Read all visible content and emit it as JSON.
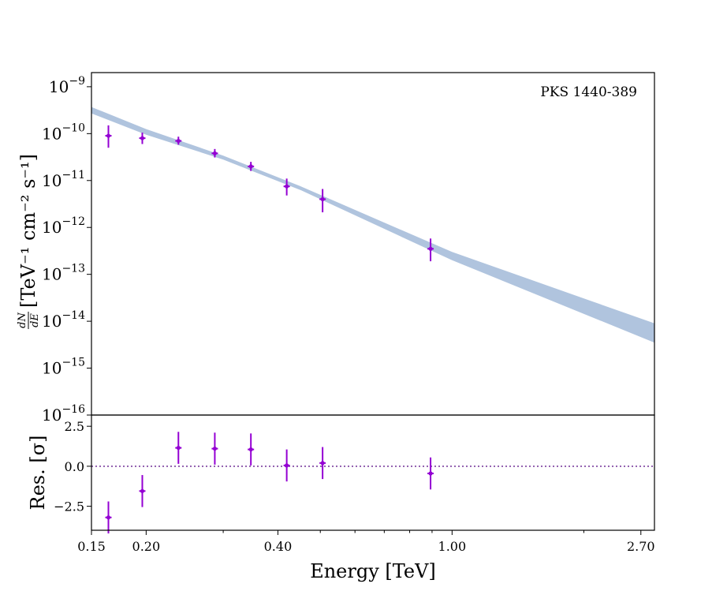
{
  "chart_data": {
    "type": "scatter",
    "source_label": "PKS 1440-389",
    "xlabel": "Energy [TeV]",
    "x_scale": "log",
    "xlim": [
      0.15,
      2.9
    ],
    "x_ticks": [
      {
        "value": 0.15,
        "label": "0.15"
      },
      {
        "value": 0.2,
        "label": "0.20"
      },
      {
        "value": 0.4,
        "label": "0.40"
      },
      {
        "value": 1.0,
        "label": "1.00"
      },
      {
        "value": 2.7,
        "label": "2.70"
      }
    ],
    "x_minor_ticks": [
      0.3,
      0.5,
      0.6,
      0.7,
      0.8,
      0.9,
      2.0
    ],
    "colors": {
      "points": "#9400d3",
      "band": "#b0c4de",
      "zero_line": "#7b3f9e"
    },
    "spectrum": {
      "ylabel_fraction_num": "dN",
      "ylabel_fraction_den": "dE",
      "ylabel": "[TeV⁻¹ cm⁻² s⁻¹]",
      "y_scale": "log",
      "ylim": [
        1e-16,
        2e-09
      ],
      "y_ticks": [
        {
          "exp": -9,
          "label": "10",
          "sup": "−9"
        },
        {
          "exp": -10,
          "label": "10",
          "sup": "−10"
        },
        {
          "exp": -11,
          "label": "10",
          "sup": "−11"
        },
        {
          "exp": -12,
          "label": "10",
          "sup": "−12"
        },
        {
          "exp": -13,
          "label": "10",
          "sup": "−13"
        },
        {
          "exp": -14,
          "label": "10",
          "sup": "−14"
        },
        {
          "exp": -15,
          "label": "10",
          "sup": "−15"
        },
        {
          "exp": -16,
          "label": "10",
          "sup": "−16"
        }
      ],
      "points": [
        {
          "x": 0.164,
          "y": 9e-11,
          "ylo": 5e-11,
          "yhi": 1.5e-10
        },
        {
          "x": 0.196,
          "y": 8e-11,
          "ylo": 6e-11,
          "yhi": 1.05e-10
        },
        {
          "x": 0.237,
          "y": 7e-11,
          "ylo": 5.8e-11,
          "yhi": 8.6e-11
        },
        {
          "x": 0.287,
          "y": 3.8e-11,
          "ylo": 3.1e-11,
          "yhi": 4.7e-11
        },
        {
          "x": 0.347,
          "y": 2e-11,
          "ylo": 1.6e-11,
          "yhi": 2.5e-11
        },
        {
          "x": 0.419,
          "y": 7.5e-12,
          "ylo": 4.8e-12,
          "yhi": 1.1e-11
        },
        {
          "x": 0.506,
          "y": 4e-12,
          "ylo": 2.1e-12,
          "yhi": 6.6e-12
        },
        {
          "x": 0.893,
          "y": 3.5e-13,
          "ylo": 1.9e-13,
          "yhi": 5.8e-13
        }
      ],
      "model_band": [
        {
          "x": 0.15,
          "lo": 2.7e-10,
          "hi": 3.7e-10
        },
        {
          "x": 0.2,
          "lo": 9.5e-11,
          "hi": 1.25e-10
        },
        {
          "x": 0.3,
          "lo": 2.8e-11,
          "hi": 3.4e-11
        },
        {
          "x": 0.45,
          "lo": 6.3e-12,
          "hi": 7.6e-12
        },
        {
          "x": 1.0,
          "lo": 2e-13,
          "hi": 3e-13
        },
        {
          "x": 2.9,
          "lo": 3.5e-15,
          "hi": 9e-15
        }
      ]
    },
    "residuals": {
      "ylabel": "Res. [σ]",
      "ylim": [
        -4.0,
        3.2
      ],
      "y_ticks": [
        {
          "value": 2.5,
          "label": "2.5"
        },
        {
          "value": 0.0,
          "label": "0.0"
        },
        {
          "value": -2.5,
          "label": "−2.5"
        }
      ],
      "points": [
        {
          "x": 0.164,
          "y": -3.2,
          "err": 1.0
        },
        {
          "x": 0.196,
          "y": -1.55,
          "err": 1.0
        },
        {
          "x": 0.237,
          "y": 1.15,
          "err": 1.0
        },
        {
          "x": 0.287,
          "y": 1.1,
          "err": 1.0
        },
        {
          "x": 0.347,
          "y": 1.05,
          "err": 1.0
        },
        {
          "x": 0.419,
          "y": 0.05,
          "err": 1.0
        },
        {
          "x": 0.506,
          "y": 0.2,
          "err": 1.0
        },
        {
          "x": 0.893,
          "y": -0.45,
          "err": 1.0
        }
      ]
    }
  }
}
